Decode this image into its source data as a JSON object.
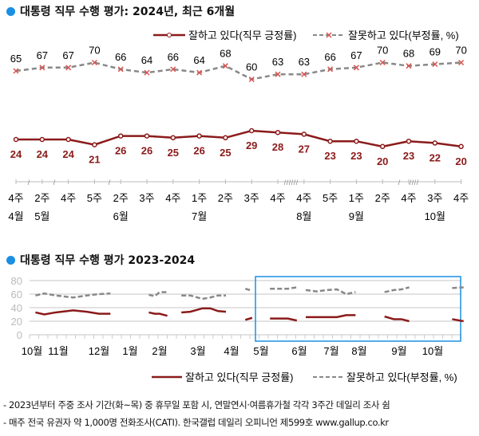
{
  "chart_data": [
    {
      "type": "line",
      "title": "대통령 직무 수행 평가: 2024년, 최근 6개월",
      "weeks": [
        "4주",
        "2주",
        "4주",
        "5주",
        "2주",
        "3주",
        "4주",
        "1주",
        "2주",
        "3주",
        "4주",
        "4주",
        "5주",
        "1주",
        "2주",
        "4주",
        "3주",
        "4주"
      ],
      "months": [
        {
          "index": 0,
          "label": "4월"
        },
        {
          "index": 1,
          "label": "5월"
        },
        {
          "index": 4,
          "label": "6월"
        },
        {
          "index": 7,
          "label": "7월"
        },
        {
          "index": 11,
          "label": "8월"
        },
        {
          "index": 13,
          "label": "9월"
        },
        {
          "index": 16,
          "label": "10월"
        }
      ],
      "series": [
        {
          "name": "잘하고 있다(직무 긍정률)",
          "color": "#8b1a1a",
          "values": [
            24,
            24,
            24,
            21,
            26,
            26,
            25,
            26,
            25,
            29,
            28,
            27,
            23,
            23,
            20,
            23,
            22,
            20
          ]
        },
        {
          "name": "잘못하고 있다(부정률, %)",
          "color": "#888888",
          "values": [
            65,
            67,
            67,
            70,
            66,
            64,
            66,
            64,
            68,
            60,
            63,
            63,
            66,
            67,
            70,
            68,
            69,
            70
          ]
        }
      ],
      "legend": "top-right"
    },
    {
      "type": "line",
      "title": "대통령 직무 수행 평가 2023-2024",
      "yticks": [
        0,
        20,
        40,
        60,
        80
      ],
      "ylim": [
        0,
        80
      ],
      "grid": true,
      "xticks": [
        {
          "date": "2023-10",
          "label": "10월"
        },
        {
          "date": "2023-11",
          "label": "11월"
        },
        {
          "date": "2023-12",
          "label": "12월"
        },
        {
          "date": "2024-01",
          "label": "1월"
        },
        {
          "date": "2024-02",
          "label": "2월"
        },
        {
          "date": "2024-03",
          "label": "3월"
        },
        {
          "date": "2024-04",
          "label": "4월"
        },
        {
          "date": "2024-05",
          "label": "5월"
        },
        {
          "date": "2024-06",
          "label": "6월"
        },
        {
          "date": "2024-07",
          "label": "7월"
        },
        {
          "date": "2024-08",
          "label": "8월"
        },
        {
          "date": "2024-09",
          "label": "9월"
        },
        {
          "date": "2024-10",
          "label": "10월"
        }
      ],
      "highlight": {
        "from": "2024-04-22",
        "to": "2024-10-31",
        "color": "#1a8fe3"
      },
      "segments": [
        {
          "dates": [
            "2023-10-05",
            "2023-10-15",
            "2023-10-28",
            "2023-11-12",
            "2023-11-22",
            "2023-12-01",
            "2023-12-12"
          ],
          "approve": [
            33,
            30,
            33,
            36,
            34,
            31,
            31
          ],
          "disapprove": [
            58,
            61,
            58,
            55,
            58,
            60,
            61
          ]
        },
        {
          "dates": [
            "2024-01-20",
            "2024-01-26",
            "2024-02-01",
            "2024-02-07"
          ],
          "approve": [
            33,
            31,
            31,
            28
          ],
          "disapprove": [
            59,
            57,
            63,
            63
          ]
        },
        {
          "dates": [
            "2024-02-18",
            "2024-02-25",
            "2024-03-05",
            "2024-03-12",
            "2024-03-19",
            "2024-03-26"
          ],
          "approve": [
            33,
            34,
            39,
            39,
            35,
            34
          ],
          "disapprove": [
            58,
            58,
            53,
            55,
            58,
            58
          ]
        },
        {
          "dates": [
            "2024-04-15",
            "2024-04-22"
          ],
          "approve": [
            22,
            25
          ],
          "disapprove": [
            68,
            65
          ]
        },
        {
          "dates": [
            "2024-05-08",
            "2024-05-15",
            "2024-05-22",
            "2024-05-29"
          ],
          "approve": [
            24,
            24,
            24,
            21
          ],
          "disapprove": [
            68,
            68,
            68,
            70
          ]
        },
        {
          "dates": [
            "2024-06-07",
            "2024-06-17",
            "2024-06-27",
            "2024-07-07",
            "2024-07-17",
            "2024-07-27"
          ],
          "approve": [
            26,
            26,
            26,
            26,
            29,
            29
          ],
          "disapprove": [
            66,
            64,
            66,
            67,
            60,
            63
          ]
        },
        {
          "dates": [
            "2024-08-20",
            "2024-08-27",
            "2024-09-03",
            "2024-09-10"
          ],
          "approve": [
            27,
            23,
            23,
            20
          ],
          "disapprove": [
            63,
            66,
            67,
            70
          ]
        },
        {
          "dates": [
            "2024-10-18",
            "2024-10-28"
          ],
          "approve": [
            23,
            20
          ],
          "disapprove": [
            69,
            70
          ]
        }
      ],
      "series": [
        {
          "name": "잘하고 있다(직무 긍정률)",
          "color": "#8b1a1a"
        },
        {
          "name": "잘못하고 있다(부정률, %)",
          "color": "#888888"
        }
      ],
      "legend": "bottom-right"
    }
  ],
  "notes": [
    "- 2023년부터 주중 조사 기간(화~목) 중 휴무일 포함 시, 연말연시·여름휴가철 각각 3주간 데일리 조사 쉼",
    "- 매주 전국 유권자 약 1,000명 전화조사(CATI). 한국갤럽 데일리 오피니언 제599호 www.gallup.co.kr"
  ]
}
